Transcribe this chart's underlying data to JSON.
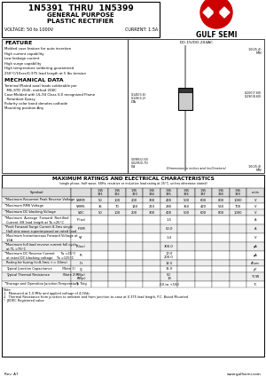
{
  "title_line1": "1N5391  THRU  1N5399",
  "title_line2": "GENERAL PURPOSE",
  "title_line3": "PLASTIC RECTIFIER",
  "voltage_label": "VOLTAGE: 50 to 1000V",
  "current_label": "CURRENT: 1.5A",
  "company": "GULF SEMI",
  "package": "DO-15/DO-204AC",
  "feature_title": "FEATURE",
  "features": [
    "Molded case feature for auto insertion",
    "High current capability",
    "Low leakage current",
    "High surge capability",
    "High temperature soldering guaranteed",
    "250°C/10sec/0.375 lead length at 5 lbs tension"
  ],
  "mech_title": "MECHANICAL DATA",
  "mech_data": [
    "Terminal:Plated axial leads solderable per",
    "  MIL-STD 202E, method 208C",
    "Case:Molded with UL-94 Class V-0 recognized Flame",
    "  Retardant Epoxy",
    "Polarity color band denotes cathode",
    "Mounting position:Any"
  ],
  "table_title": "MAXIMUM RATINGS AND ELECTRICAL CHARACTERISTICS",
  "table_subtitle": "(single phase, half wave, 60Hz, resistive or inductive load rating at 25°C, unless otherwise stated)",
  "rows": [
    {
      "bullet": true,
      "label": "Maximum Recurrent Peak Reverse Voltage",
      "symbol": "VRRM",
      "values": [
        "50",
        "100",
        "200",
        "300",
        "400",
        "500",
        "600",
        "800",
        "1000"
      ],
      "unit": "V",
      "tall": false
    },
    {
      "bullet": true,
      "label": "Maximum RMS Voltage",
      "symbol": "VRMS",
      "values": [
        "35",
        "70",
        "140",
        "210",
        "280",
        "350",
        "420",
        "560",
        "700"
      ],
      "unit": "V",
      "tall": false
    },
    {
      "bullet": true,
      "label": "Maximum DC blocking Voltage",
      "symbol": "VDC",
      "values": [
        "50",
        "100",
        "200",
        "300",
        "400",
        "500",
        "600",
        "800",
        "1000"
      ],
      "unit": "V",
      "tall": false
    },
    {
      "bullet": true,
      "label": "Maximum  Average  Forward  Rectified\nCurrent 3/8 lead length at Ta =25°C",
      "symbol": "IF(av)",
      "values": [
        "",
        "",
        "",
        "",
        "1.5",
        "",
        "",
        "",
        ""
      ],
      "unit": "A",
      "tall": true
    },
    {
      "bullet": true,
      "label": "Peak Forward Surge Current 8.3ms single\nHalf sine wave superimposed on rated load",
      "symbol": "IFSM",
      "values": [
        "",
        "",
        "",
        "",
        "50.0",
        "",
        "",
        "",
        ""
      ],
      "unit": "A",
      "tall": true
    },
    {
      "bullet": false,
      "label": "Maximum Instantaneous Forward Voltage at\n1.5A",
      "symbol": "VF",
      "values": [
        "",
        "",
        "",
        "",
        "1.4",
        "",
        "",
        "",
        ""
      ],
      "unit": "V",
      "tall": true
    },
    {
      "bullet": true,
      "label": "Maximum full load reverse current full cycle\nat TL =75°C",
      "symbol": "IR(av)",
      "values": [
        "",
        "",
        "",
        "",
        "300.0",
        "",
        "",
        "",
        ""
      ],
      "unit": "μA",
      "tall": true
    },
    {
      "bullet": true,
      "label": "Maximum DC Reverse Current      Ta =25°C\nat rated DC blocking voltage    Ta =125°C",
      "symbol": "IR",
      "values": [
        "",
        "",
        "",
        "",
        "10.0\n200.0",
        "",
        "",
        "",
        ""
      ],
      "unit": "μA",
      "tall": true
    },
    {
      "bullet": false,
      "label": "Rating for fusing (t=8.3ms; t = 10ms)",
      "symbol": "I²t",
      "values": [
        "",
        "",
        "",
        "",
        "12.5",
        "",
        "",
        "",
        ""
      ],
      "unit": "A²sec",
      "tall": false
    },
    {
      "bullet": false,
      "label": "Typical Junction Capacitance          (Note 1)",
      "symbol": "CJ",
      "values": [
        "",
        "",
        "",
        "",
        "15.0",
        "",
        "",
        "",
        ""
      ],
      "unit": "pF",
      "tall": false
    },
    {
      "bullet": false,
      "label": "Typical Thermal Resistance             (Note 2)",
      "symbol": "Rθ(ja)\nRθ(jc)",
      "values": [
        "",
        "",
        "",
        "",
        "50\n13",
        "",
        "",
        "",
        ""
      ],
      "unit": "°C/W",
      "tall": true
    },
    {
      "bullet": true,
      "label": "Storage and Operation Junction Temperature",
      "symbol": "TJ, Tstg",
      "values": [
        "",
        "",
        "",
        "",
        "-50 to +150",
        "",
        "",
        "",
        ""
      ],
      "unit": "°C",
      "tall": false
    }
  ],
  "notes": [
    "Note:",
    "1.  Measured at 1.0 MHz and applied voltage of 4.0Vdc",
    "2.  Thermal Resistance from junction to ambient and from junction-to-case at 0.375 lead length, P.C. Board Mounted",
    "*  JEDEC Registered value"
  ],
  "footer_left": "Rev: A7",
  "footer_right": "www.gulfsemi.com"
}
